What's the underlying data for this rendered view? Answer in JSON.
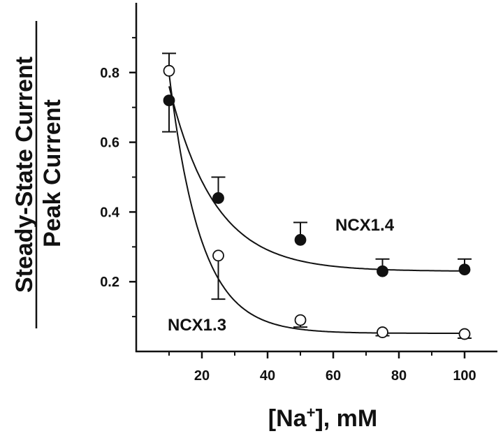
{
  "chart_data": {
    "type": "scatter",
    "xlabel": "[Na+], mM",
    "ylabel_numerator": "Steady-State Current",
    "ylabel_denominator": "Peak Current",
    "xlim": [
      0,
      110
    ],
    "ylim": [
      0,
      1.0
    ],
    "x_ticks": [
      20,
      40,
      60,
      80,
      100
    ],
    "y_ticks": [
      0.2,
      0.4,
      0.6,
      0.8
    ],
    "grid": false,
    "series": [
      {
        "name": "NCX1.4",
        "marker": "filled-circle",
        "x": [
          10,
          25,
          50,
          75,
          100
        ],
        "y": [
          0.72,
          0.44,
          0.32,
          0.23,
          0.235
        ],
        "err_up": [
          0,
          0.06,
          0.05,
          0.035,
          0.03
        ],
        "err_down": [
          0.09,
          0,
          0,
          0,
          0
        ],
        "fit_curve": {
          "a": 0.23,
          "b": 1.09,
          "k": 0.072
        }
      },
      {
        "name": "NCX1.3",
        "marker": "open-circle",
        "x": [
          10,
          25,
          50,
          75,
          100
        ],
        "y": [
          0.805,
          0.275,
          0.09,
          0.055,
          0.05
        ],
        "err_up": [
          0.05,
          0,
          0,
          0,
          0
        ],
        "err_down": [
          0,
          0.125,
          0.02,
          0.01,
          0.012
        ],
        "fit_curve": {
          "a": 0.052,
          "b": 2.11,
          "k": 0.104
        }
      }
    ],
    "colors": {
      "ink": "#111111",
      "open_fill": "#ffffff"
    }
  }
}
